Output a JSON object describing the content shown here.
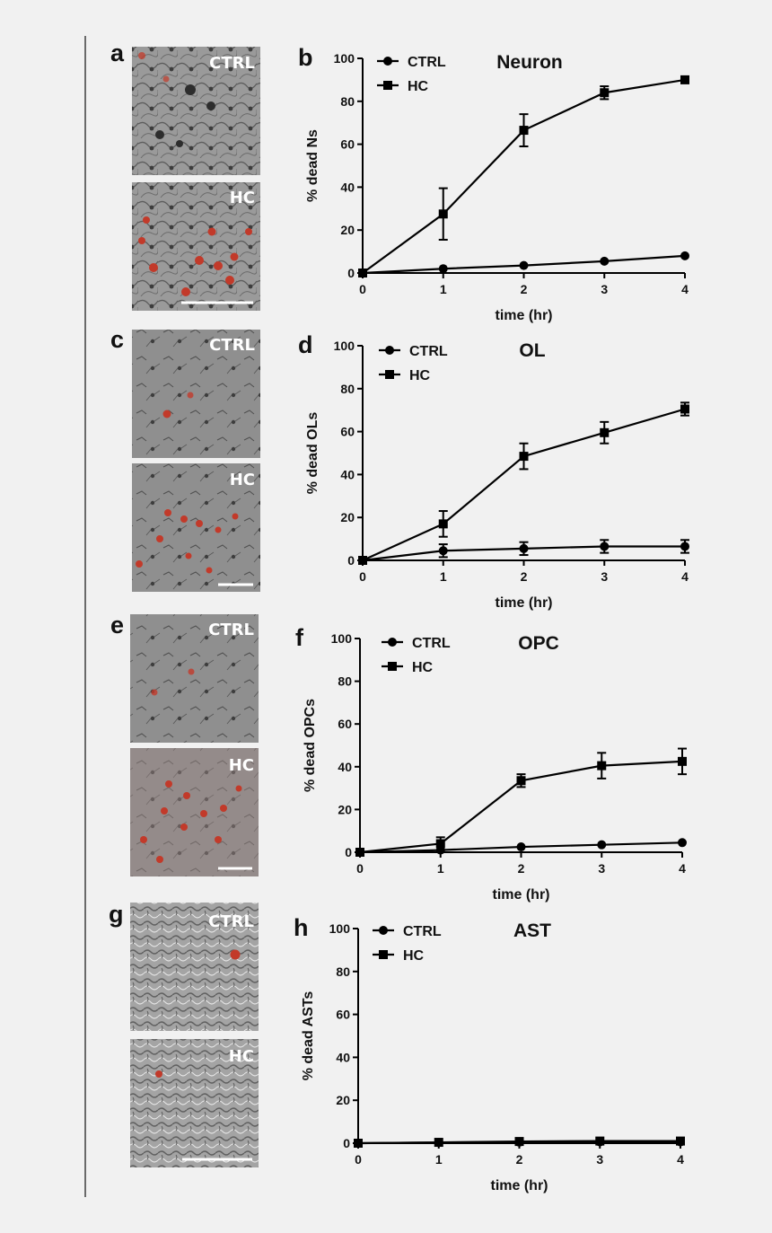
{
  "panels": [
    {
      "letter": "a",
      "top_label": "CTRL",
      "bottom_label": "HC"
    },
    {
      "letter": "c",
      "top_label": "CTRL",
      "bottom_label": "HC"
    },
    {
      "letter": "e",
      "top_label": "CTRL",
      "bottom_label": "HC"
    },
    {
      "letter": "g",
      "top_label": "CTRL",
      "bottom_label": "HC"
    }
  ],
  "colors": {
    "page_bg": "#f1f1f1",
    "micro_bg": "#8e8e8e",
    "stain": "#c23a2a",
    "line": "#000000"
  },
  "chart_data": [
    {
      "letter": "b",
      "type": "line",
      "title": "Neuron",
      "xlabel": "time (hr)",
      "ylabel": "% dead Ns",
      "x": [
        0,
        1,
        2,
        3,
        4
      ],
      "xticks": [
        "0",
        "1",
        "2",
        "3",
        "4"
      ],
      "yticks": [
        "0",
        "20",
        "40",
        "60",
        "80",
        "100"
      ],
      "ylim": [
        0,
        100
      ],
      "legend_position": "top-left",
      "series": [
        {
          "name": "CTRL",
          "marker": "circle",
          "values": [
            0,
            2,
            3.5,
            5.5,
            8
          ],
          "errors": [
            0,
            0,
            0,
            0,
            0
          ]
        },
        {
          "name": "HC",
          "marker": "square",
          "values": [
            0,
            27.5,
            66.5,
            84,
            90
          ],
          "errors": [
            0,
            12,
            7.5,
            3,
            1
          ]
        }
      ]
    },
    {
      "letter": "d",
      "type": "line",
      "title": "OL",
      "xlabel": "time (hr)",
      "ylabel": "% dead OLs",
      "x": [
        0,
        1,
        2,
        3,
        4
      ],
      "xticks": [
        "0",
        "1",
        "2",
        "3",
        "4"
      ],
      "yticks": [
        "0",
        "20",
        "40",
        "60",
        "80",
        "100"
      ],
      "ylim": [
        0,
        100
      ],
      "legend_position": "top-left",
      "series": [
        {
          "name": "CTRL",
          "marker": "circle",
          "values": [
            0,
            4.5,
            5.5,
            6.5,
            6.5
          ],
          "errors": [
            0,
            3,
            3,
            3,
            3
          ]
        },
        {
          "name": "HC",
          "marker": "square",
          "values": [
            0,
            17,
            48.5,
            59.5,
            70.5
          ],
          "errors": [
            0,
            6,
            6,
            5,
            3
          ]
        }
      ]
    },
    {
      "letter": "f",
      "type": "line",
      "title": "OPC",
      "xlabel": "time (hr)",
      "ylabel": "% dead OPCs",
      "x": [
        0,
        1,
        2,
        3,
        4
      ],
      "xticks": [
        "0",
        "1",
        "2",
        "3",
        "4"
      ],
      "yticks": [
        "0",
        "20",
        "40",
        "60",
        "80",
        "100"
      ],
      "ylim": [
        0,
        100
      ],
      "legend_position": "top-left",
      "series": [
        {
          "name": "CTRL",
          "marker": "circle",
          "values": [
            0,
            1,
            2.5,
            3.5,
            4.5
          ],
          "errors": [
            0,
            0,
            0,
            0,
            0
          ]
        },
        {
          "name": "HC",
          "marker": "square",
          "values": [
            0,
            4,
            33.5,
            40.5,
            42.5
          ],
          "errors": [
            0,
            3,
            3,
            6,
            6
          ]
        }
      ]
    },
    {
      "letter": "h",
      "type": "line",
      "title": "AST",
      "xlabel": "time (hr)",
      "ylabel": "% dead ASTs",
      "x": [
        0,
        1,
        2,
        3,
        4
      ],
      "xticks": [
        "0",
        "1",
        "2",
        "3",
        "4"
      ],
      "yticks": [
        "0",
        "20",
        "40",
        "60",
        "80",
        "100"
      ],
      "ylim": [
        0,
        100
      ],
      "legend_position": "top-left",
      "series": [
        {
          "name": "CTRL",
          "marker": "circle",
          "values": [
            0,
            0.3,
            0.5,
            0.6,
            0.6
          ],
          "errors": [
            0,
            0,
            0,
            0,
            0
          ]
        },
        {
          "name": "HC",
          "marker": "square",
          "values": [
            0,
            0.4,
            0.8,
            1,
            1
          ],
          "errors": [
            0,
            0,
            0,
            0,
            0
          ]
        }
      ]
    }
  ]
}
